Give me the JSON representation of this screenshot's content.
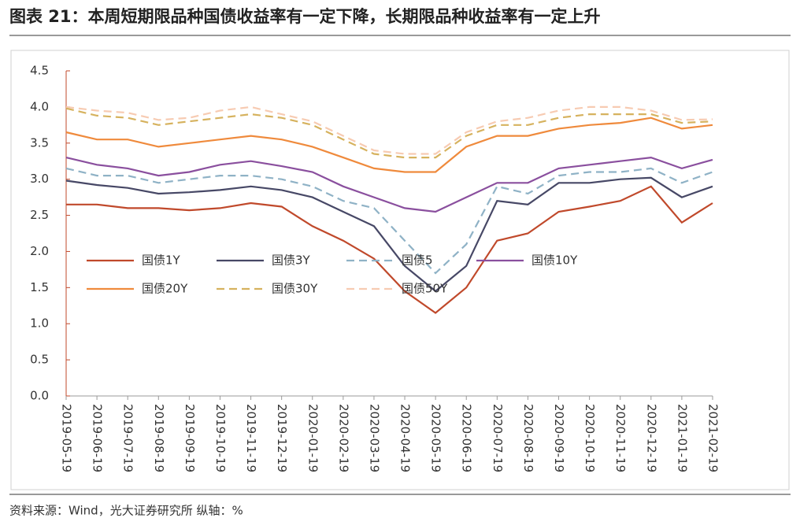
{
  "header": {
    "title": "图表 21：本周短期限品种国债收益率有一定下降，长期限品种收益率有一定上升"
  },
  "chart_data": {
    "type": "line",
    "categories": [
      "2019-05-19",
      "2019-06-19",
      "2019-07-19",
      "2019-08-19",
      "2019-09-19",
      "2019-10-19",
      "2019-11-19",
      "2019-12-19",
      "2020-01-19",
      "2020-02-19",
      "2020-03-19",
      "2020-04-19",
      "2020-05-19",
      "2020-06-19",
      "2020-07-19",
      "2020-08-19",
      "2020-09-19",
      "2020-10-19",
      "2020-11-19",
      "2020-12-19",
      "2021-01-19",
      "2021-02-19"
    ],
    "ylim": [
      0,
      4.5
    ],
    "yticks": [
      {
        "value": 0,
        "label": "0.0"
      },
      0.5,
      {
        "value": 1,
        "label": "1.0"
      },
      1.5,
      {
        "value": 2,
        "label": "2.0"
      },
      2.5,
      {
        "value": 3,
        "label": "3.0"
      },
      3.5,
      {
        "value": 4,
        "label": "4.0"
      },
      4.5
    ],
    "series": [
      {
        "name": "国债1Y",
        "color": "#c0492b",
        "line_style": "solid",
        "values": [
          2.65,
          2.65,
          2.6,
          2.6,
          2.57,
          2.6,
          2.67,
          2.62,
          2.35,
          2.15,
          1.9,
          1.45,
          1.15,
          1.5,
          2.15,
          2.25,
          2.55,
          2.62,
          2.7,
          2.9,
          2.4,
          2.67
        ]
      },
      {
        "name": "国债3Y",
        "color": "#474866",
        "line_style": "solid",
        "values": [
          2.98,
          2.92,
          2.88,
          2.8,
          2.82,
          2.85,
          2.9,
          2.85,
          2.75,
          2.55,
          2.35,
          1.8,
          1.45,
          1.8,
          2.7,
          2.65,
          2.95,
          2.95,
          3.0,
          3.02,
          2.75,
          2.9
        ]
      },
      {
        "name": "国债5",
        "color": "#8fb2c6",
        "line_style": "dashed",
        "values": [
          3.15,
          3.05,
          3.05,
          2.95,
          3.0,
          3.05,
          3.05,
          3.0,
          2.9,
          2.7,
          2.6,
          2.15,
          1.7,
          2.1,
          2.9,
          2.8,
          3.05,
          3.1,
          3.1,
          3.15,
          2.95,
          3.1
        ]
      },
      {
        "name": "国债10Y",
        "color": "#8a4f9e",
        "line_style": "solid",
        "values": [
          3.3,
          3.2,
          3.15,
          3.05,
          3.1,
          3.2,
          3.25,
          3.18,
          3.1,
          2.9,
          2.75,
          2.6,
          2.55,
          2.75,
          2.95,
          2.95,
          3.15,
          3.2,
          3.25,
          3.3,
          3.15,
          3.27
        ]
      },
      {
        "name": "国债20Y",
        "color": "#ef8a3c",
        "line_style": "solid",
        "values": [
          3.65,
          3.55,
          3.55,
          3.45,
          3.5,
          3.55,
          3.6,
          3.55,
          3.45,
          3.3,
          3.15,
          3.1,
          3.1,
          3.45,
          3.6,
          3.6,
          3.7,
          3.75,
          3.78,
          3.85,
          3.7,
          3.75
        ]
      },
      {
        "name": "国债30Y",
        "color": "#d6b25e",
        "line_style": "dashed",
        "values": [
          3.98,
          3.88,
          3.85,
          3.75,
          3.8,
          3.85,
          3.9,
          3.85,
          3.75,
          3.55,
          3.35,
          3.3,
          3.3,
          3.6,
          3.75,
          3.75,
          3.85,
          3.9,
          3.9,
          3.9,
          3.78,
          3.8
        ]
      },
      {
        "name": "国债50Y",
        "color": "#f7cbb2",
        "line_style": "dashed",
        "values": [
          4.0,
          3.95,
          3.92,
          3.82,
          3.85,
          3.95,
          4.0,
          3.9,
          3.8,
          3.6,
          3.4,
          3.35,
          3.35,
          3.65,
          3.8,
          3.85,
          3.95,
          4.0,
          4.0,
          3.95,
          3.82,
          3.83
        ]
      }
    ]
  },
  "footer": {
    "source": "资料来源：Wind，光大证券研究所 纵轴：%"
  }
}
